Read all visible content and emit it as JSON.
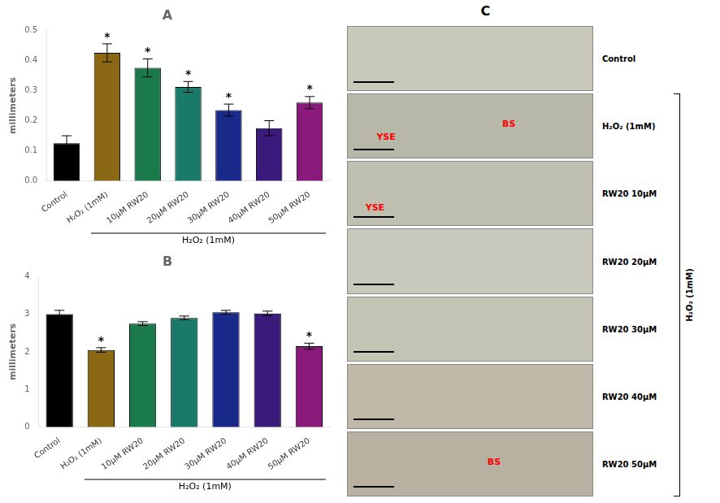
{
  "chart_data": [
    {
      "type": "bar",
      "title": "A",
      "categories": [
        "Control",
        "H₂O₂ (1mM)",
        "10μM RW20",
        "20μM RW20",
        "30μM RW20",
        "40μM RW20",
        "50μM RW20"
      ],
      "values": [
        0.125,
        0.425,
        0.375,
        0.312,
        0.235,
        0.175,
        0.26
      ],
      "errors": [
        0.025,
        0.03,
        0.03,
        0.018,
        0.02,
        0.025,
        0.02
      ],
      "colors": [
        "#000000",
        "#8B6914",
        "#1A7A4A",
        "#1A7A6A",
        "#1A2A8A",
        "#3A1A7A",
        "#8A1A7A"
      ],
      "ylabel": "millimeters",
      "ylim": [
        0,
        0.5
      ],
      "yticks": [
        {
          "value": 0,
          "label": "0.0"
        },
        0.1,
        0.2,
        0.3,
        0.4,
        0.5
      ],
      "grid": false,
      "annotations": [
        {
          "text": "*",
          "x": "H₂O₂ (1mM)"
        },
        {
          "text": "*",
          "x": "10μM RW20"
        },
        {
          "text": "*",
          "x": "20μM RW20"
        },
        {
          "text": "*",
          "x": "30μM RW20"
        },
        {
          "text": "*",
          "x": "50μM RW20"
        },
        {
          "text": "H₂O₂ (1mM)",
          "from": "H₂O₂ (1mM)",
          "to": "50μM RW20"
        }
      ]
    },
    {
      "type": "bar",
      "title": "B",
      "categories": [
        "Control",
        "H₂O₂ (1mM)",
        "10μM RW20",
        "20μM RW20",
        "30μM RW20",
        "40μM RW20",
        "50μM RW20"
      ],
      "values": [
        3.0,
        2.05,
        2.75,
        2.9,
        3.05,
        3.02,
        2.15
      ],
      "errors": [
        0.1,
        0.06,
        0.05,
        0.05,
        0.05,
        0.06,
        0.08
      ],
      "colors": [
        "#000000",
        "#8B6914",
        "#1A7A4A",
        "#1A7A6A",
        "#1A2A8A",
        "#3A1A7A",
        "#8A1A7A"
      ],
      "ylabel": "millimeters",
      "ylim": [
        0,
        4
      ],
      "yticks": [
        0,
        1,
        2,
        3,
        4
      ],
      "grid": false,
      "annotations": [
        {
          "text": "*",
          "x": "H₂O₂ (1mM)"
        },
        {
          "text": "*",
          "x": "50μM RW20"
        },
        {
          "text": "H₂O₂ (1mM)",
          "from": "H₂O₂ (1mM)",
          "to": "50μM RW20"
        }
      ]
    },
    {
      "type": "images",
      "title": "C",
      "categories": [
        "Control",
        "H₂O₂ (1mM)",
        "RW20 10μM",
        "RW20 20μM",
        "RW20 30μM",
        "RW20 40μM",
        "RW20 50μM"
      ],
      "colors": [
        "#c8c8b8",
        "#b8b8a8",
        "#c0c0b0",
        "#c8c8bc",
        "#c4c4b4",
        "#c0b8a8",
        "#b8b0a0"
      ],
      "annotations": [
        {
          "text": "YSE",
          "row": "H₂O₂ (1mM)",
          "color": "red"
        },
        {
          "text": "BS",
          "row": "H₂O₂ (1mM)",
          "color": "red"
        },
        {
          "text": "YSE",
          "row": "RW20 10μM",
          "color": "red"
        },
        {
          "text": "BS",
          "row": "RW20 50μM",
          "color": "red"
        },
        {
          "text": "H₂O₂ (1mM)",
          "from": "H₂O₂ (1mM)",
          "to": "RW20 50μM"
        }
      ]
    }
  ]
}
